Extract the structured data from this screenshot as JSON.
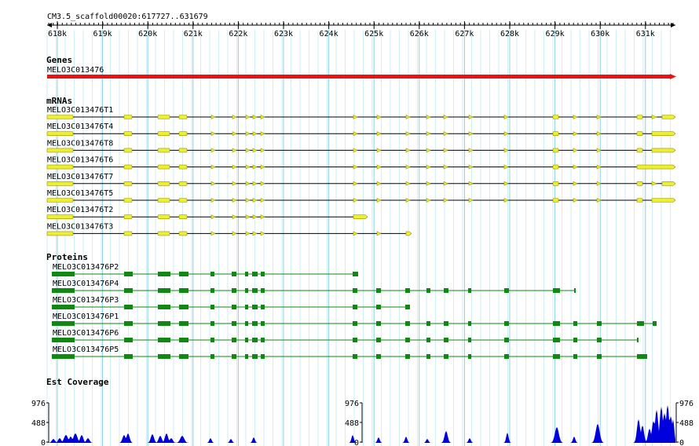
{
  "ruler": {
    "region": "CM3.5_scaffold00020:617727..631679",
    "ticks": [
      "618k",
      "619k",
      "620k",
      "621k",
      "622k",
      "623k",
      "624k",
      "625k",
      "626k",
      "627k",
      "628k",
      "629k",
      "630k",
      "631k"
    ]
  },
  "genes": {
    "title": "Genes",
    "items": [
      {
        "name": "MELO3C013476",
        "color": "#ee1111"
      }
    ]
  },
  "mrnas": {
    "title": "mRNAs",
    "color": "#eeee33",
    "items": [
      {
        "name": "MELO3C013476T1"
      },
      {
        "name": "MELO3C013476T4"
      },
      {
        "name": "MELO3C013476T8"
      },
      {
        "name": "MELO3C013476T6"
      },
      {
        "name": "MELO3C013476T7"
      },
      {
        "name": "MELO3C013476T5"
      },
      {
        "name": "MELO3C013476T2"
      },
      {
        "name": "MELO3C013476T3"
      }
    ]
  },
  "proteins": {
    "title": "Proteins",
    "color": "#118811",
    "items": [
      {
        "name": "MELO3C013476P2"
      },
      {
        "name": "MELO3C013476P4"
      },
      {
        "name": "MELO3C013476P3"
      },
      {
        "name": "MELO3C013476P1"
      },
      {
        "name": "MELO3C013476P6"
      },
      {
        "name": "MELO3C013476P5"
      }
    ]
  },
  "coverage": {
    "title": "Est Coverage",
    "max_label": "976",
    "mid_label": "488",
    "zero_label": "0",
    "color": "#0000dd"
  }
}
